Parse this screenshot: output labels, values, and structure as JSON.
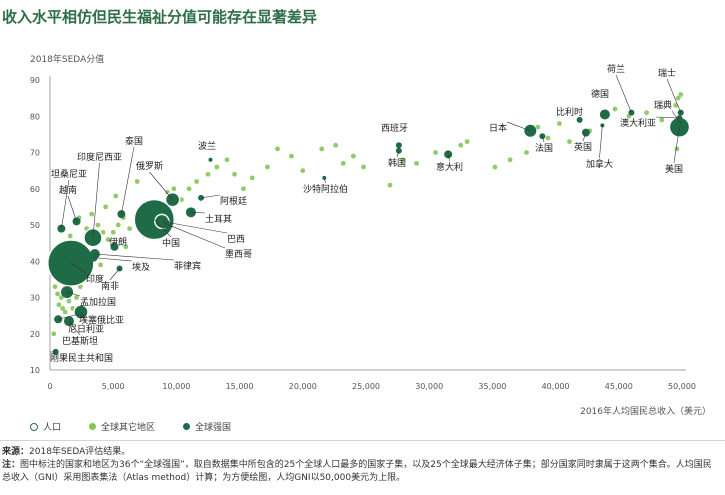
{
  "title": "收入水平相仿但民生福祉分值可能存在显著差异",
  "legend": {
    "population": "人口",
    "other": "全球其它地区",
    "major": "全球强国"
  },
  "notes": {
    "source_label": "来源：",
    "source_text": "2018年SEDA评估结果。",
    "note_label": "注：",
    "note_text": "图中标注的国家和地区为36个“全球强国”，取自数据集中所包含的25个全球人口最多的国家子集，以及25个全球最大经济体子集；部分国家同时隶属于这两个集合。人均国民总收入（GNI）采用图表集法（Atlas method）计算；为方便绘图，人均GNI以50,000美元为上限。"
  },
  "colors": {
    "major": "#1f6b45",
    "other": "#86c45a",
    "title": "#2e6e46",
    "axis": "#9aa7a0"
  },
  "chart_data": {
    "type": "scatter",
    "xlabel": "2016年人均国民总收入（美元）",
    "ylabel": "2018年SEDA分值",
    "xlim": [
      0,
      50000
    ],
    "ylim": [
      10,
      90
    ],
    "xticks": [
      "0",
      "5,000",
      "10,000",
      "15,000",
      "20,000",
      "25,000",
      "30,000",
      "35,000",
      "40,000",
      "45,000",
      "50,000"
    ],
    "xtick_values": [
      0,
      5000,
      10000,
      15000,
      20000,
      25000,
      30000,
      35000,
      40000,
      45000,
      50000
    ],
    "yticks": [
      "10",
      "20",
      "30",
      "40",
      "50",
      "60",
      "70",
      "80",
      "90"
    ],
    "ytick_values": [
      10,
      20,
      30,
      40,
      50,
      60,
      70,
      80,
      90
    ],
    "major": [
      {
        "name": "刚果民主共和国",
        "x": 450,
        "y": 15,
        "size": 3
      },
      {
        "name": "巴基斯坦",
        "x": 1500,
        "y": 23.5,
        "size": 5
      },
      {
        "name": "尼日利亚",
        "x": 2450,
        "y": 26,
        "size": 7
      },
      {
        "name": "埃塞俄比亚",
        "x": 650,
        "y": 24,
        "size": 4
      },
      {
        "name": "孟加拉国",
        "x": 1350,
        "y": 31.5,
        "size": 6
      },
      {
        "name": "印度",
        "x": 1650,
        "y": 39.5,
        "size": 23
      },
      {
        "name": "南非",
        "x": 5500,
        "y": 38,
        "size": 3
      },
      {
        "name": "埃及",
        "x": 3450,
        "y": 41,
        "size": 4
      },
      {
        "name": "伊朗",
        "x": 5100,
        "y": 44,
        "size": 4
      },
      {
        "name": "印度尼西亚",
        "x": 3400,
        "y": 46.5,
        "size": 9
      },
      {
        "name": "菲律宾",
        "x": 3550,
        "y": 42,
        "size": 5
      },
      {
        "name": "越南",
        "x": 2100,
        "y": 51,
        "size": 4
      },
      {
        "name": "坦桑尼亚",
        "x": 900,
        "y": 49,
        "size": 4
      },
      {
        "name": "泰国",
        "x": 5650,
        "y": 53,
        "size": 4
      },
      {
        "name": "中国",
        "x": 8250,
        "y": 51.5,
        "size": 20
      },
      {
        "name": "巴西",
        "x": 8850,
        "y": 51,
        "size": 7
      },
      {
        "name": "墨西哥",
        "x": 9050,
        "y": 50.5,
        "size": 5
      },
      {
        "name": "俄罗斯",
        "x": 9700,
        "y": 57,
        "size": 7
      },
      {
        "name": "土耳其",
        "x": 11150,
        "y": 53.5,
        "size": 5
      },
      {
        "name": "阿根廷",
        "x": 11950,
        "y": 57.5,
        "size": 3
      },
      {
        "name": "波兰",
        "x": 12700,
        "y": 68,
        "size": 2
      },
      {
        "name": "沙特阿拉伯",
        "x": 21700,
        "y": 63,
        "size": 2
      },
      {
        "name": "西班牙",
        "x": 27600,
        "y": 72,
        "size": 3
      },
      {
        "name": "韩国",
        "x": 27600,
        "y": 70.5,
        "size": 3
      },
      {
        "name": "意大利",
        "x": 31500,
        "y": 69.5,
        "size": 4
      },
      {
        "name": "日本",
        "x": 38000,
        "y": 76,
        "size": 6
      },
      {
        "name": "法国",
        "x": 38950,
        "y": 74.5,
        "size": 3
      },
      {
        "name": "比利时",
        "x": 41900,
        "y": 79,
        "size": 3
      },
      {
        "name": "英国",
        "x": 42400,
        "y": 75.5,
        "size": 4
      },
      {
        "name": "加拿大",
        "x": 43700,
        "y": 77.5,
        "size": 2
      },
      {
        "name": "德国",
        "x": 43900,
        "y": 80.5,
        "size": 5
      },
      {
        "name": "荷兰",
        "x": 46000,
        "y": 81,
        "size": 3
      },
      {
        "name": "澳大利亚",
        "x": 49800,
        "y": 79.5,
        "size": 3
      },
      {
        "name": "瑞典",
        "x": 49900,
        "y": 78,
        "size": 3
      },
      {
        "name": "瑞士",
        "x": 49900,
        "y": 81,
        "size": 3
      },
      {
        "name": "美国",
        "x": 49800,
        "y": 77,
        "size": 10
      }
    ],
    "other": [
      [
        300,
        20
      ],
      [
        500,
        24
      ],
      [
        700,
        28
      ],
      [
        900,
        30
      ],
      [
        400,
        33
      ],
      [
        1100,
        35
      ],
      [
        800,
        37
      ],
      [
        1300,
        34
      ],
      [
        600,
        31
      ],
      [
        1500,
        29
      ],
      [
        1800,
        27
      ],
      [
        1200,
        26
      ],
      [
        2100,
        30
      ],
      [
        2400,
        33
      ],
      [
        2800,
        35
      ],
      [
        1000,
        39
      ],
      [
        1700,
        38
      ],
      [
        2200,
        41
      ],
      [
        2600,
        43
      ],
      [
        3100,
        45
      ],
      [
        3500,
        47
      ],
      [
        2900,
        49
      ],
      [
        3800,
        50
      ],
      [
        4200,
        48
      ],
      [
        4600,
        46
      ],
      [
        5000,
        48
      ],
      [
        5400,
        50
      ],
      [
        5800,
        52
      ],
      [
        6300,
        49
      ],
      [
        6800,
        51
      ],
      [
        7200,
        53
      ],
      [
        7800,
        55
      ],
      [
        8600,
        56
      ],
      [
        9300,
        59
      ],
      [
        9800,
        60
      ],
      [
        10400,
        57
      ],
      [
        11000,
        60
      ],
      [
        11600,
        62
      ],
      [
        12500,
        64
      ],
      [
        13200,
        66
      ],
      [
        14000,
        68
      ],
      [
        14600,
        64
      ],
      [
        15300,
        60
      ],
      [
        16000,
        63
      ],
      [
        17200,
        66
      ],
      [
        18000,
        71
      ],
      [
        19100,
        69
      ],
      [
        20000,
        65
      ],
      [
        21500,
        71
      ],
      [
        22600,
        72
      ],
      [
        23200,
        67
      ],
      [
        24000,
        69
      ],
      [
        24800,
        66
      ],
      [
        26900,
        61
      ],
      [
        27900,
        68
      ],
      [
        29000,
        67
      ],
      [
        30500,
        70
      ],
      [
        32500,
        72
      ],
      [
        33000,
        73
      ],
      [
        35200,
        66
      ],
      [
        36400,
        68
      ],
      [
        37700,
        70
      ],
      [
        38600,
        77
      ],
      [
        39400,
        74
      ],
      [
        40300,
        78
      ],
      [
        41100,
        73
      ],
      [
        42700,
        76
      ],
      [
        44700,
        82
      ],
      [
        45800,
        80
      ],
      [
        47200,
        81
      ],
      [
        48400,
        79
      ],
      [
        49500,
        83
      ],
      [
        49700,
        85
      ],
      [
        49900,
        86
      ],
      [
        49600,
        71
      ],
      [
        6900,
        62
      ],
      [
        5200,
        58
      ],
      [
        4400,
        55
      ],
      [
        3300,
        53
      ],
      [
        2300,
        52
      ],
      [
        1600,
        47
      ],
      [
        700,
        44
      ],
      [
        1900,
        36
      ],
      [
        1400,
        42
      ],
      [
        4000,
        39
      ],
      [
        6000,
        44
      ],
      [
        7500,
        47
      ],
      [
        1000,
        27
      ]
    ]
  },
  "labels": [
    {
      "text": "瑞士",
      "for": "瑞士"
    },
    {
      "text": "荷兰",
      "for": "荷兰"
    },
    {
      "text": "瑞典",
      "for": "瑞典"
    },
    {
      "text": "澳大利亚",
      "for": "澳大利亚"
    },
    {
      "text": "德国",
      "for": "德国"
    },
    {
      "text": "比利时",
      "for": "比利时"
    },
    {
      "text": "日本",
      "for": "日本"
    },
    {
      "text": "法国",
      "for": "法国"
    },
    {
      "text": "英国",
      "for": "英国"
    },
    {
      "text": "加拿大",
      "for": "加拿大"
    },
    {
      "text": "美国",
      "for": "美国"
    },
    {
      "text": "西班牙",
      "for": "西班牙"
    },
    {
      "text": "韩国",
      "for": "韩国"
    },
    {
      "text": "意大利",
      "for": "意大利"
    },
    {
      "text": "沙特阿拉伯",
      "for": "沙特阿拉伯"
    },
    {
      "text": "波兰",
      "for": "波兰"
    },
    {
      "text": "泰国",
      "for": "泰国"
    },
    {
      "text": "俄罗斯",
      "for": "俄罗斯"
    },
    {
      "text": "阿根廷",
      "for": "阿根廷"
    },
    {
      "text": "土耳其",
      "for": "土耳其"
    },
    {
      "text": "巴西",
      "for": "巴西"
    },
    {
      "text": "墨西哥",
      "for": "墨西哥"
    },
    {
      "text": "中国",
      "for": "中国"
    },
    {
      "text": "菲律宾",
      "for": "菲律宾"
    },
    {
      "text": "埃及",
      "for": "埃及"
    },
    {
      "text": "伊朗",
      "for": "伊朗"
    },
    {
      "text": "印度尼西亚",
      "for": "印度尼西亚"
    },
    {
      "text": "坦桑尼亚",
      "for": "坦桑尼亚"
    },
    {
      "text": "越南",
      "for": "越南"
    },
    {
      "text": "印度",
      "for": "印度"
    },
    {
      "text": "南非",
      "for": "南非"
    },
    {
      "text": "孟加拉国",
      "for": "孟加拉国"
    },
    {
      "text": "埃塞俄比亚",
      "for": "埃塞俄比亚"
    },
    {
      "text": "尼日利亚",
      "for": "尼日利亚"
    },
    {
      "text": "巴基斯坦",
      "for": "巴基斯坦"
    },
    {
      "text": "刚果民主共和国",
      "for": "刚果民主共和国"
    }
  ]
}
